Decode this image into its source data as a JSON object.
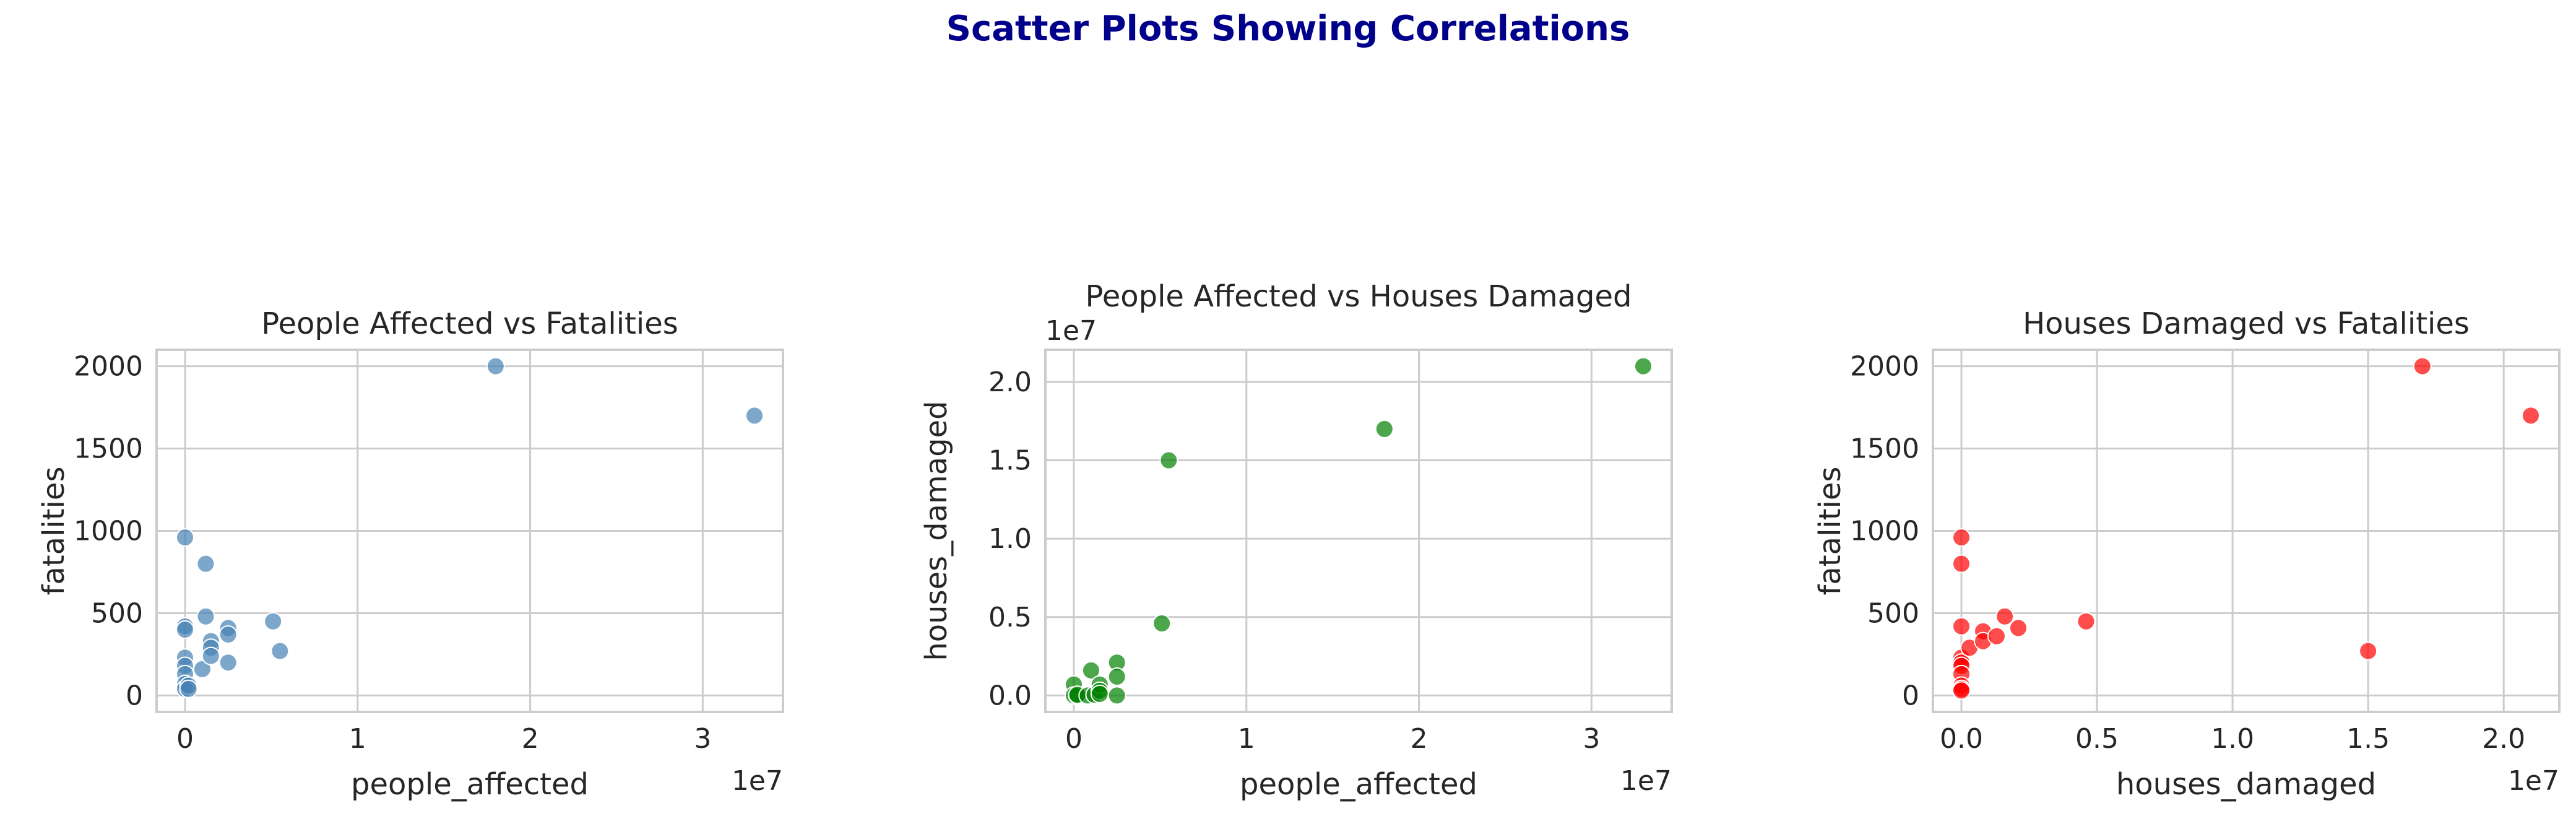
{
  "figure": {
    "title": "Scatter Plots Showing Correlations"
  },
  "chart_data": [
    {
      "type": "scatter",
      "title": "People Affected vs Fatalities",
      "xlabel": "people_affected",
      "ylabel": "fatalities",
      "x_offset_text": "1e7",
      "y_offset_text": "",
      "xlim": [
        -1650000,
        34650000
      ],
      "ylim": [
        -100,
        2100
      ],
      "xticks": [
        {
          "v": 0,
          "label": "0"
        },
        {
          "v": 10000000,
          "label": "1"
        },
        {
          "v": 20000000,
          "label": "2"
        },
        {
          "v": 30000000,
          "label": "3"
        }
      ],
      "yticks": [
        {
          "v": 0,
          "label": "0"
        },
        {
          "v": 500,
          "label": "500"
        },
        {
          "v": 1000,
          "label": "1000"
        },
        {
          "v": 1500,
          "label": "1500"
        },
        {
          "v": 2000,
          "label": "2000"
        }
      ],
      "grid": true,
      "color": "#4682b4",
      "alpha": 0.7,
      "points": [
        {
          "x": 0,
          "y": 960
        },
        {
          "x": 0,
          "y": 420
        },
        {
          "x": 0,
          "y": 400
        },
        {
          "x": 0,
          "y": 230
        },
        {
          "x": 0,
          "y": 180
        },
        {
          "x": 0,
          "y": 130
        },
        {
          "x": 0,
          "y": 70
        },
        {
          "x": 0,
          "y": 40
        },
        {
          "x": 200000,
          "y": 60
        },
        {
          "x": 200000,
          "y": 40
        },
        {
          "x": 1000000,
          "y": 160
        },
        {
          "x": 1200000,
          "y": 800
        },
        {
          "x": 1200000,
          "y": 480
        },
        {
          "x": 1500000,
          "y": 330
        },
        {
          "x": 1500000,
          "y": 290
        },
        {
          "x": 1500000,
          "y": 240
        },
        {
          "x": 2500000,
          "y": 410
        },
        {
          "x": 2500000,
          "y": 370
        },
        {
          "x": 2500000,
          "y": 200
        },
        {
          "x": 5100000,
          "y": 450
        },
        {
          "x": 5500000,
          "y": 270
        },
        {
          "x": 18000000,
          "y": 2000
        },
        {
          "x": 33000000,
          "y": 1700
        }
      ]
    },
    {
      "type": "scatter",
      "title": "People Affected vs Houses Damaged",
      "xlabel": "people_affected",
      "ylabel": "houses_damaged",
      "x_offset_text": "1e7",
      "y_offset_text": "1e7",
      "xlim": [
        -1650000,
        34650000
      ],
      "ylim": [
        -1050000,
        22050000
      ],
      "xticks": [
        {
          "v": 0,
          "label": "0"
        },
        {
          "v": 10000000,
          "label": "1"
        },
        {
          "v": 20000000,
          "label": "2"
        },
        {
          "v": 30000000,
          "label": "3"
        }
      ],
      "yticks": [
        {
          "v": 0,
          "label": "0.0"
        },
        {
          "v": 5000000,
          "label": "0.5"
        },
        {
          "v": 10000000,
          "label": "1.0"
        },
        {
          "v": 15000000,
          "label": "1.5"
        },
        {
          "v": 20000000,
          "label": "2.0"
        }
      ],
      "grid": true,
      "color": "#008000",
      "alpha": 0.7,
      "points": [
        {
          "x": 0,
          "y": 700000
        },
        {
          "x": 0,
          "y": 0
        },
        {
          "x": 200000,
          "y": 0
        },
        {
          "x": 200000,
          "y": 50000
        },
        {
          "x": 800000,
          "y": 0
        },
        {
          "x": 1000000,
          "y": 1600000
        },
        {
          "x": 1200000,
          "y": 50000
        },
        {
          "x": 1500000,
          "y": 700000
        },
        {
          "x": 1500000,
          "y": 300000
        },
        {
          "x": 1500000,
          "y": 100000
        },
        {
          "x": 2500000,
          "y": 2100000
        },
        {
          "x": 2500000,
          "y": 1200000
        },
        {
          "x": 2500000,
          "y": 0
        },
        {
          "x": 5100000,
          "y": 4600000
        },
        {
          "x": 5500000,
          "y": 15000000
        },
        {
          "x": 18000000,
          "y": 17000000
        },
        {
          "x": 33000000,
          "y": 21000000
        }
      ]
    },
    {
      "type": "scatter",
      "title": "Houses Damaged vs Fatalities",
      "xlabel": "houses_damaged",
      "ylabel": "fatalities",
      "x_offset_text": "1e7",
      "y_offset_text": "",
      "xlim": [
        -1050000,
        22050000
      ],
      "ylim": [
        -100,
        2100
      ],
      "xticks": [
        {
          "v": 0,
          "label": "0.0"
        },
        {
          "v": 5000000,
          "label": "0.5"
        },
        {
          "v": 10000000,
          "label": "1.0"
        },
        {
          "v": 15000000,
          "label": "1.5"
        },
        {
          "v": 20000000,
          "label": "2.0"
        }
      ],
      "yticks": [
        {
          "v": 0,
          "label": "0"
        },
        {
          "v": 500,
          "label": "500"
        },
        {
          "v": 1000,
          "label": "1000"
        },
        {
          "v": 1500,
          "label": "1500"
        },
        {
          "v": 2000,
          "label": "2000"
        }
      ],
      "grid": true,
      "color": "#ff0000",
      "alpha": 0.7,
      "points": [
        {
          "x": 0,
          "y": 960
        },
        {
          "x": 0,
          "y": 800
        },
        {
          "x": 0,
          "y": 420
        },
        {
          "x": 0,
          "y": 230
        },
        {
          "x": 0,
          "y": 200
        },
        {
          "x": 0,
          "y": 180
        },
        {
          "x": 0,
          "y": 130
        },
        {
          "x": 0,
          "y": 60
        },
        {
          "x": 0,
          "y": 40
        },
        {
          "x": 0,
          "y": 30
        },
        {
          "x": 300000,
          "y": 290
        },
        {
          "x": 800000,
          "y": 390
        },
        {
          "x": 800000,
          "y": 330
        },
        {
          "x": 1300000,
          "y": 360
        },
        {
          "x": 1600000,
          "y": 480
        },
        {
          "x": 2100000,
          "y": 410
        },
        {
          "x": 4600000,
          "y": 450
        },
        {
          "x": 15000000,
          "y": 270
        },
        {
          "x": 17000000,
          "y": 2000
        },
        {
          "x": 21000000,
          "y": 1700
        }
      ]
    }
  ]
}
